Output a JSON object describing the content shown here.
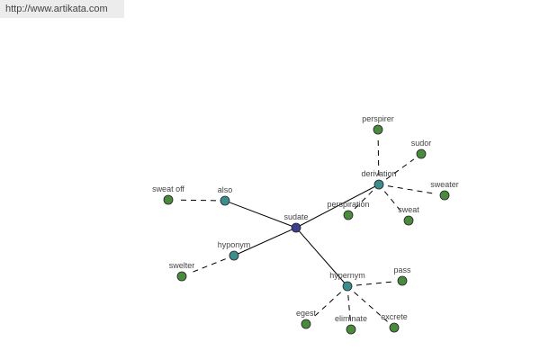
{
  "banner": {
    "url_text": "http://www.artikata.com"
  },
  "colors": {
    "center": "#3a3f8f",
    "relation": "#3c8d8d",
    "word": "#4a8a3c",
    "edge": "#000000",
    "banner_bg": "#ececec"
  },
  "graph": {
    "nodes": [
      {
        "id": "sudate",
        "label": "sudate",
        "type": "center"
      },
      {
        "id": "also",
        "label": "also",
        "type": "relation"
      },
      {
        "id": "hyponym",
        "label": "hyponym",
        "type": "relation"
      },
      {
        "id": "derivation",
        "label": "derivation",
        "type": "relation"
      },
      {
        "id": "hypernym",
        "label": "hypernym",
        "type": "relation"
      },
      {
        "id": "sweat_off",
        "label": "sweat off",
        "type": "word"
      },
      {
        "id": "swelter",
        "label": "swelter",
        "type": "word"
      },
      {
        "id": "perspirer",
        "label": "perspirer",
        "type": "word"
      },
      {
        "id": "sudor",
        "label": "sudor",
        "type": "word"
      },
      {
        "id": "sweater",
        "label": "sweater",
        "type": "word"
      },
      {
        "id": "sweat",
        "label": "sweat",
        "type": "word"
      },
      {
        "id": "perspiration",
        "label": "perspiration",
        "type": "word"
      },
      {
        "id": "pass",
        "label": "pass",
        "type": "word"
      },
      {
        "id": "egest",
        "label": "egest",
        "type": "word"
      },
      {
        "id": "eliminate",
        "label": "eliminate",
        "type": "word"
      },
      {
        "id": "excrete",
        "label": "excrete",
        "type": "word"
      }
    ],
    "edges": [
      {
        "from": "sudate",
        "to": "also",
        "style": "solid"
      },
      {
        "from": "sudate",
        "to": "hyponym",
        "style": "solid"
      },
      {
        "from": "sudate",
        "to": "derivation",
        "style": "solid"
      },
      {
        "from": "sudate",
        "to": "hypernym",
        "style": "solid"
      },
      {
        "from": "also",
        "to": "sweat_off",
        "style": "dashed"
      },
      {
        "from": "hyponym",
        "to": "swelter",
        "style": "dashed"
      },
      {
        "from": "derivation",
        "to": "perspirer",
        "style": "dashed"
      },
      {
        "from": "derivation",
        "to": "sudor",
        "style": "dashed"
      },
      {
        "from": "derivation",
        "to": "sweater",
        "style": "dashed"
      },
      {
        "from": "derivation",
        "to": "sweat",
        "style": "dashed"
      },
      {
        "from": "derivation",
        "to": "perspiration",
        "style": "dashed"
      },
      {
        "from": "hypernym",
        "to": "pass",
        "style": "dashed"
      },
      {
        "from": "hypernym",
        "to": "egest",
        "style": "dashed"
      },
      {
        "from": "hypernym",
        "to": "eliminate",
        "style": "dashed"
      },
      {
        "from": "hypernym",
        "to": "excrete",
        "style": "dashed"
      }
    ]
  }
}
